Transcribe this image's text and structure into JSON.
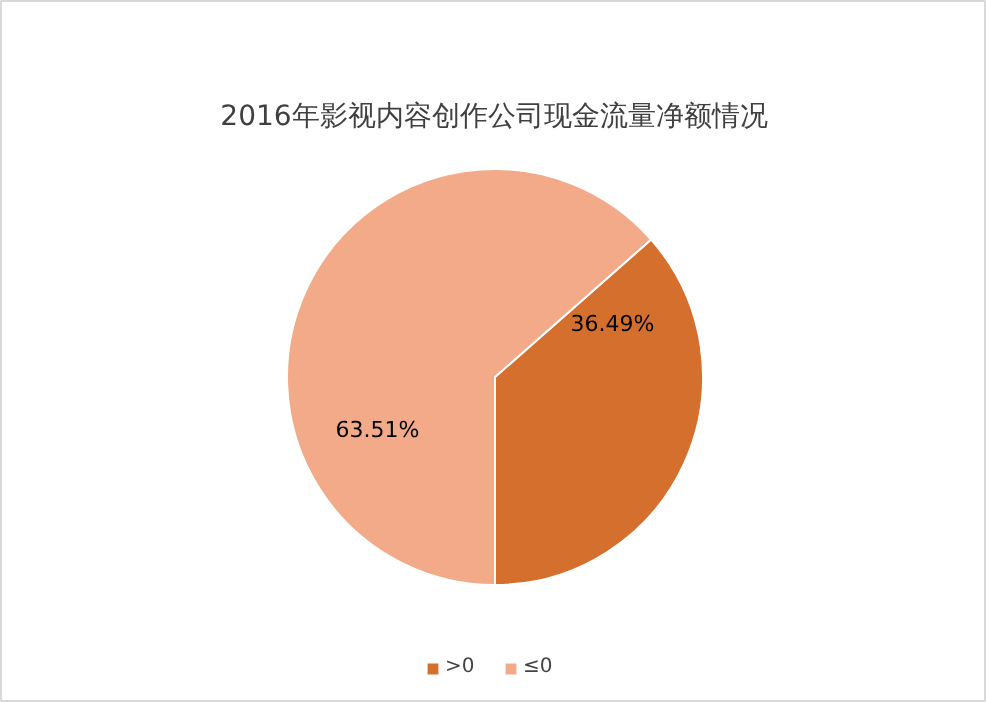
{
  "chart_data": {
    "type": "pie",
    "title": "2016年影视内容创作公司现金流量净额情况",
    "categories": [
      ">0",
      "≤0"
    ],
    "values": [
      36.49,
      63.51
    ],
    "colors": [
      "#d46f2d",
      "#f2aa88"
    ],
    "value_labels": [
      "36.49%",
      "63.51%"
    ],
    "legend": "bottom"
  }
}
